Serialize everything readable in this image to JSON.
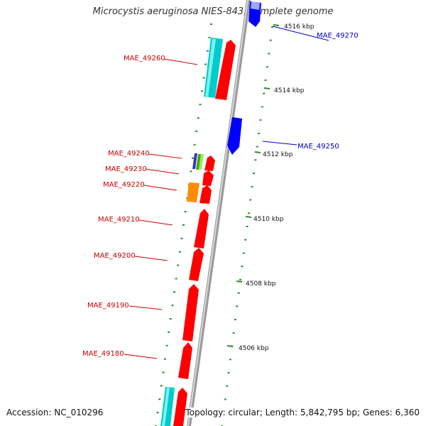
{
  "title": "Microcystis aeruginosa NIES-843, complete genome",
  "accession": "Accession: NC_010296",
  "summary": "Topology: circular; Length: 5,842,795 bp; Genes: 6,360",
  "colors": {
    "backbone": "#9a9a9a",
    "ruler": "#2e8b2e",
    "forward_gene": "#ff0000",
    "reverse_gene": "#0000ff",
    "forward_label": "#cc0000",
    "reverse_label": "#0000cc",
    "cyan_feature": "#00cccc",
    "orange_feature": "#ff8c00"
  },
  "scale_labels": [
    "4516 kbp",
    "4514 kbp",
    "4512 kbp",
    "4510 kbp",
    "4508 kbp",
    "4506 kbp"
  ],
  "genes": [
    {
      "name": "MAE_49270",
      "strand": "reverse"
    },
    {
      "name": "MAE_49260",
      "strand": "forward"
    },
    {
      "name": "MAE_49250",
      "strand": "reverse"
    },
    {
      "name": "MAE_49240",
      "strand": "forward"
    },
    {
      "name": "MAE_49230",
      "strand": "forward"
    },
    {
      "name": "MAE_49220",
      "strand": "forward"
    },
    {
      "name": "MAE_49210",
      "strand": "forward"
    },
    {
      "name": "MAE_49200",
      "strand": "forward"
    },
    {
      "name": "MAE_49190",
      "strand": "forward"
    },
    {
      "name": "MAE_49180",
      "strand": "forward"
    }
  ]
}
